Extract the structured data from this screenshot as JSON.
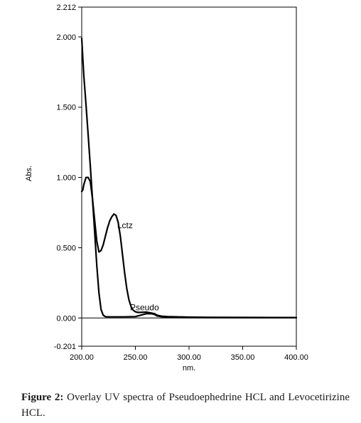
{
  "chart_data": {
    "type": "line",
    "title": "",
    "xlabel": "nm.",
    "ylabel": "Abs.",
    "xlim": [
      200,
      400
    ],
    "ylim": [
      -0.201,
      2.212
    ],
    "x_ticks": [
      {
        "value": 200,
        "label": "200.00"
      },
      {
        "value": 250,
        "label": "250.00"
      },
      {
        "value": 300,
        "label": "300.00"
      },
      {
        "value": 350,
        "label": "350.00"
      },
      {
        "value": 400,
        "label": "400.00"
      }
    ],
    "y_ticks": [
      {
        "value": 2.212,
        "label": "2.212"
      },
      {
        "value": 2.0,
        "label": "2.000"
      },
      {
        "value": 1.5,
        "label": "1.500"
      },
      {
        "value": 1.0,
        "label": "1.000"
      },
      {
        "value": 0.5,
        "label": "0.500"
      },
      {
        "value": 0.0,
        "label": "0.000"
      },
      {
        "value": -0.201,
        "label": "-0.201"
      }
    ],
    "grid": false,
    "baseline": 0.0,
    "series": [
      {
        "name": "Lctz",
        "label_at": [
          233,
          0.64
        ],
        "x": [
          200,
          201,
          202,
          204,
          206,
          208,
          210,
          212,
          214,
          216,
          218,
          220,
          222,
          224,
          226,
          228,
          230,
          232,
          234,
          236,
          238,
          240,
          242,
          244,
          246,
          248,
          250,
          252,
          255,
          260,
          265,
          268,
          270,
          275,
          280,
          290,
          300,
          320,
          350,
          400
        ],
        "y": [
          0.9,
          0.91,
          0.95,
          1.0,
          1.0,
          0.97,
          0.85,
          0.7,
          0.55,
          0.47,
          0.48,
          0.52,
          0.58,
          0.64,
          0.69,
          0.72,
          0.74,
          0.73,
          0.68,
          0.58,
          0.45,
          0.32,
          0.21,
          0.13,
          0.08,
          0.055,
          0.045,
          0.04,
          0.04,
          0.042,
          0.035,
          0.03,
          0.02,
          0.012,
          0.01,
          0.008,
          0.006,
          0.005,
          0.004,
          0.003
        ]
      },
      {
        "name": "Pseudo",
        "label_at": [
          245,
          0.055
        ],
        "x": [
          200,
          201,
          202,
          203,
          204,
          206,
          208,
          210,
          212,
          214,
          216,
          218,
          220,
          222,
          224,
          226,
          230,
          240,
          250,
          255,
          260,
          265,
          268,
          270,
          275,
          280,
          290,
          300,
          350,
          400
        ],
        "y": [
          1.99,
          1.85,
          1.72,
          1.62,
          1.52,
          1.3,
          1.08,
          0.85,
          0.62,
          0.38,
          0.18,
          0.06,
          0.02,
          0.01,
          0.008,
          0.008,
          0.008,
          0.008,
          0.01,
          0.02,
          0.03,
          0.03,
          0.025,
          0.015,
          0.008,
          0.005,
          0.004,
          0.003,
          0.002,
          0.002
        ]
      }
    ]
  },
  "caption": {
    "figure_label": "Figure 2:",
    "text": " Overlay UV spectra of Pseudoephedrine HCL and Levocetirizine HCL."
  }
}
